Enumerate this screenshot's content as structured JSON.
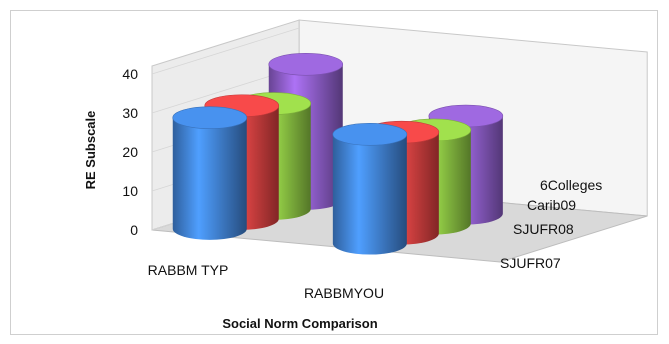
{
  "chart_data": {
    "type": "bar",
    "subtype": "3d-cylinder",
    "title": "",
    "xlabel": "Social Norm Comparison",
    "ylabel": "RE Subscale",
    "ylim": [
      0,
      40
    ],
    "yticks": [
      "0",
      "10",
      "20",
      "30",
      "40"
    ],
    "categories": [
      "RABBM TYP",
      "RABBMYOU"
    ],
    "depth_labels": [
      "SJUFR07",
      "SJUFR08",
      "Carib09",
      "6Colleges"
    ],
    "series": [
      {
        "name": "SJUFR07",
        "color": "#3f7fd0",
        "values": [
          28.5,
          28
        ]
      },
      {
        "name": "SJUFR08",
        "color": "#d84040",
        "values": [
          29,
          26
        ]
      },
      {
        "name": "Carib09",
        "color": "#8cc443",
        "values": [
          27,
          24
        ]
      },
      {
        "name": "6Colleges",
        "color": "#8a5bc4",
        "values": [
          34.5,
          25
        ]
      }
    ],
    "grid": false,
    "legend": "none"
  }
}
